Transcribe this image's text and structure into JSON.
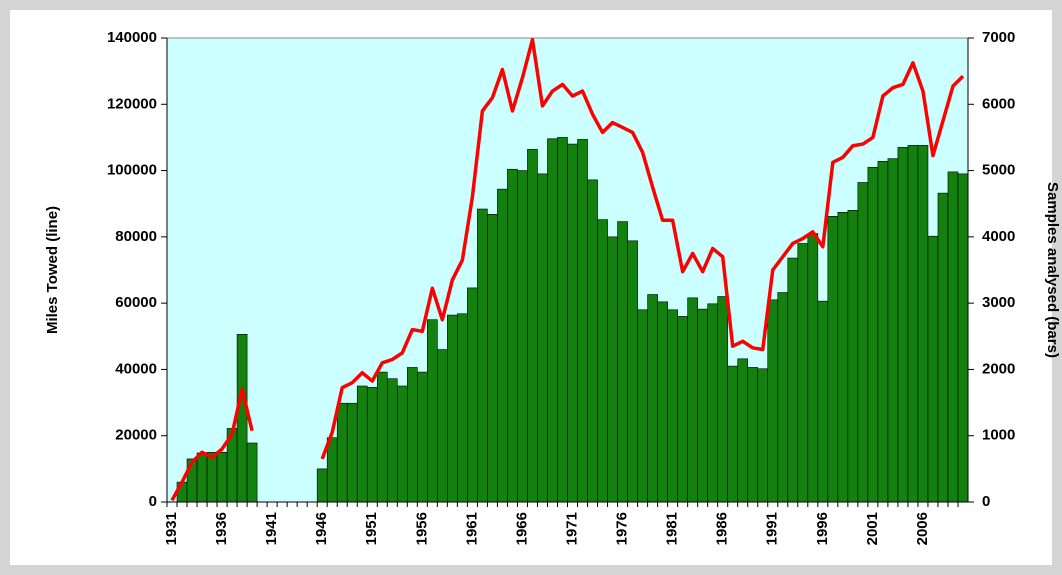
{
  "chart_data": {
    "type": "bar-line",
    "ylabel": "Miles Towed (line)",
    "y2label": "Samples analysed (bars)",
    "categories": [
      "1931",
      null,
      null,
      null,
      null,
      "1936",
      null,
      null,
      null,
      null,
      "1941",
      null,
      null,
      null,
      null,
      "1946",
      null,
      null,
      null,
      null,
      "1951",
      null,
      null,
      null,
      null,
      "1956",
      null,
      null,
      null,
      null,
      "1961",
      null,
      null,
      null,
      null,
      "1966",
      null,
      null,
      null,
      null,
      "1971",
      null,
      null,
      null,
      null,
      "1976",
      null,
      null,
      null,
      null,
      "1981",
      null,
      null,
      null,
      null,
      "1986",
      null,
      null,
      null,
      null,
      "1991",
      null,
      null,
      null,
      null,
      "1996",
      null,
      null,
      null,
      null,
      "2001",
      null,
      null,
      null,
      null,
      "2006",
      null,
      null,
      null,
      null
    ],
    "series": [
      {
        "type": "bar",
        "axis": "y2",
        "color": "#13800f",
        "values": [
          null,
          300,
          650,
          740,
          750,
          750,
          1110,
          2530,
          890,
          null,
          null,
          null,
          null,
          null,
          null,
          500,
          970,
          1490,
          1490,
          1750,
          1730,
          1960,
          1860,
          1750,
          2030,
          1960,
          2750,
          2300,
          2820,
          2840,
          3230,
          4420,
          4340,
          4720,
          5020,
          5000,
          5320,
          4950,
          5480,
          5500,
          5400,
          5470,
          4860,
          4260,
          4000,
          4230,
          3940,
          2900,
          3130,
          3020,
          2900,
          2800,
          3080,
          2910,
          2990,
          3100,
          2050,
          2160,
          2030,
          2010,
          3050,
          3160,
          3680,
          3900,
          4050,
          3030,
          4310,
          4370,
          4400,
          4820,
          5050,
          5140,
          5180,
          5350,
          5380,
          5380,
          4010,
          4660,
          4980,
          4950
        ]
      },
      {
        "type": "line",
        "color": "#ff0000",
        "values": [
          500,
          6000,
          12000,
          15000,
          13500,
          16000,
          20500,
          34000,
          21500,
          null,
          null,
          null,
          null,
          null,
          null,
          13000,
          21000,
          34500,
          36000,
          39000,
          36500,
          42000,
          43000,
          45000,
          52000,
          51500,
          64500,
          55000,
          67000,
          73000,
          92000,
          118000,
          122000,
          130500,
          118000,
          128000,
          139500,
          119500,
          124000,
          126000,
          122500,
          124000,
          117000,
          111500,
          114500,
          113000,
          111500,
          105500,
          95000,
          85000,
          85000,
          69500,
          75000,
          69500,
          76500,
          74000,
          47000,
          48500,
          46500,
          46000,
          70000,
          74000,
          78000,
          79500,
          81500,
          77000,
          102500,
          104000,
          107500,
          108000,
          110000,
          122500,
          125000,
          126000,
          132500,
          124000,
          104500,
          115000,
          125500,
          128500
        ]
      }
    ],
    "ylim": [
      0,
      140000
    ],
    "yticks": [
      0,
      20000,
      40000,
      60000,
      80000,
      100000,
      120000,
      140000
    ],
    "y2lim": [
      0,
      7000
    ],
    "y2ticks": [
      0,
      1000,
      2000,
      3000,
      4000,
      5000,
      6000,
      7000
    ],
    "plot_background": "#ccffff"
  }
}
